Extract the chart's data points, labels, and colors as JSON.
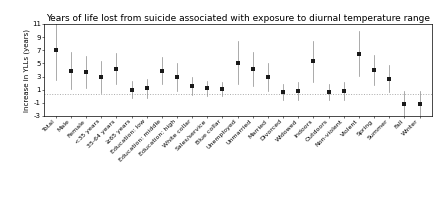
{
  "title": "Years of life lost from suicide associated with exposure to diurnal temperature range",
  "ylabel": "Increase in YLLs (years)",
  "categories": [
    "Total",
    "Male",
    "Female",
    "<35 years",
    "35-64 years",
    "≥65 years",
    "Education: low",
    "Education: middle",
    "Education: high",
    "White collar",
    "Sales/service",
    "Blue collar",
    "Unemployed",
    "Unmarried",
    "Married",
    "Divorced",
    "Widowed",
    "Indoors",
    "Outdoors",
    "Non-violent",
    "Violent",
    "Spring",
    "Summer",
    "Fall",
    "Winter"
  ],
  "values": [
    7.0,
    3.9,
    3.7,
    2.9,
    4.2,
    1.0,
    1.2,
    3.9,
    2.9,
    1.6,
    1.2,
    1.1,
    5.1,
    4.1,
    2.9,
    0.7,
    0.8,
    5.3,
    0.7,
    0.8,
    6.5,
    4.0,
    2.7,
    -1.1,
    -1.2
  ],
  "ci_low": [
    2.5,
    1.1,
    1.2,
    0.5,
    1.8,
    -0.3,
    -0.3,
    1.8,
    0.8,
    0.2,
    0.1,
    0.1,
    1.8,
    1.5,
    0.8,
    -0.6,
    -0.5,
    2.2,
    -0.5,
    -0.5,
    3.1,
    1.7,
    0.6,
    -3.0,
    -3.2
  ],
  "ci_high": [
    11.5,
    6.7,
    6.2,
    5.3,
    6.6,
    2.3,
    2.7,
    6.0,
    5.0,
    3.0,
    2.3,
    2.1,
    8.4,
    6.7,
    5.0,
    1.9,
    2.1,
    8.4,
    1.9,
    2.1,
    9.9,
    6.3,
    4.8,
    0.8,
    0.8
  ],
  "hline_y": 0.3,
  "ylim": [
    -3,
    11
  ],
  "yticks": [
    -3,
    -1,
    1,
    3,
    5,
    7,
    9,
    11
  ],
  "background_color": "#ffffff",
  "point_color": "#1a1a1a",
  "ci_color": "#888888",
  "hline_color": "#aaaaaa",
  "title_fontsize": 6.5,
  "ylabel_fontsize": 5.0,
  "xtick_fontsize": 4.5,
  "ytick_fontsize": 5.0
}
